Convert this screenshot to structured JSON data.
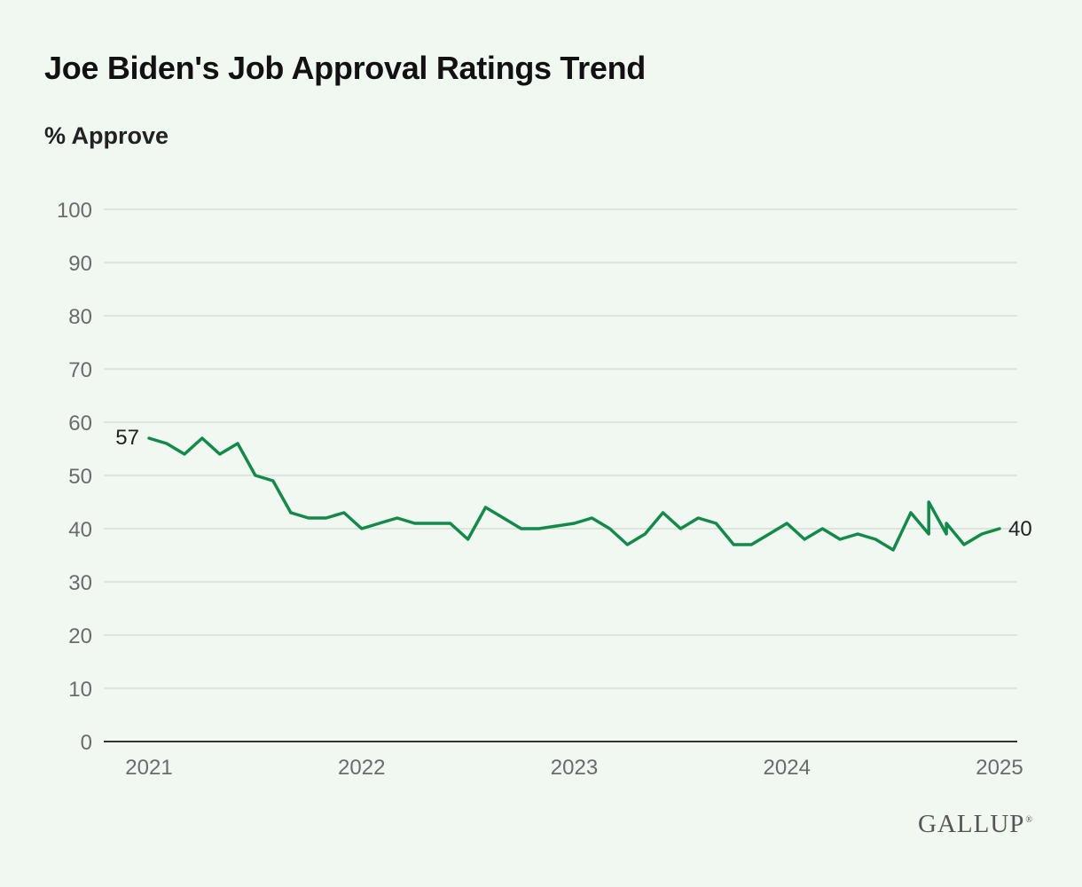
{
  "title": "Joe Biden's Job Approval Ratings Trend",
  "subtitle": "% Approve",
  "brand": "GALLUP",
  "brand_mark": "®",
  "colors": {
    "background": "#f1f7f1",
    "series": "#138a4a",
    "grid": "#d6ded6"
  },
  "chart_data": {
    "type": "line",
    "title": "Joe Biden's Job Approval Ratings Trend",
    "ylabel": "% Approve",
    "xlabel": "",
    "ylim": [
      0,
      100
    ],
    "yticks": [
      0,
      10,
      20,
      30,
      40,
      50,
      60,
      70,
      80,
      90,
      100
    ],
    "xlim": [
      2021,
      2025
    ],
    "xticks": [
      "2021",
      "2022",
      "2023",
      "2024",
      "2025"
    ],
    "grid": true,
    "legend": "none",
    "series": [
      {
        "x": [
          2021.0,
          2021.083,
          2021.167,
          2021.25,
          2021.333,
          2021.417,
          2021.5,
          2021.583,
          2021.667,
          2021.75,
          2021.833,
          2021.917,
          2022.0,
          2022.083,
          2022.167,
          2022.25,
          2022.333,
          2022.417,
          2022.5,
          2022.583,
          2022.667,
          2022.75,
          2022.833,
          2022.917,
          2023.0,
          2023.083,
          2023.167,
          2023.25,
          2023.333,
          2023.417,
          2023.5,
          2023.583,
          2023.667,
          2023.75,
          2023.833,
          2023.917,
          2024.0,
          2024.083,
          2024.167,
          2024.25,
          2024.333,
          2024.417,
          2024.5,
          2024.583,
          2024.667,
          2024.667,
          2024.75,
          2024.75,
          2024.833,
          2024.917,
          2025.0
        ],
        "values": [
          57,
          56,
          54,
          57,
          54,
          56,
          50,
          49,
          43,
          42,
          42,
          43,
          40,
          41,
          42,
          41,
          41,
          41,
          38,
          44,
          42,
          40,
          40,
          40.5,
          41,
          42,
          40,
          37,
          39,
          43,
          40,
          42,
          41,
          37,
          37,
          39,
          41,
          38,
          40,
          38,
          39,
          38,
          36,
          43,
          39,
          45,
          39,
          41,
          37,
          39,
          40
        ]
      }
    ],
    "annotations": [
      {
        "x": 2021.0,
        "y": 57,
        "text": "57"
      },
      {
        "x": 2025.0,
        "y": 40,
        "text": "40"
      }
    ]
  }
}
